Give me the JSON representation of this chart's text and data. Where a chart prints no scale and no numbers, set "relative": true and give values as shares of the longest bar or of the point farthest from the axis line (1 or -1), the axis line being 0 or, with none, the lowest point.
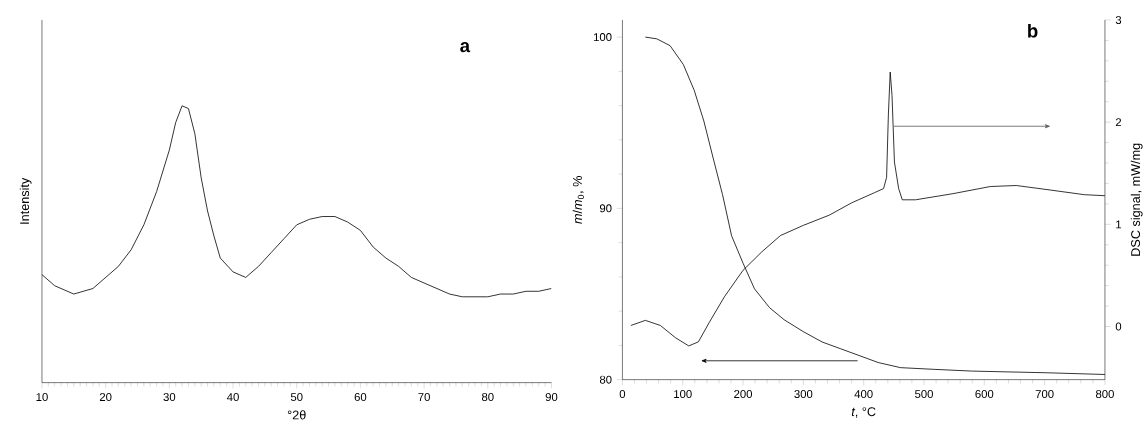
{
  "chart_data": [
    {
      "type": "line",
      "title": "a",
      "xlabel": "°2θ",
      "ylabel": "Intensity",
      "relative": true,
      "color": "#000000",
      "xlim": [
        10,
        90
      ],
      "xticks": [
        10,
        20,
        30,
        40,
        50,
        60,
        70,
        80,
        90
      ],
      "x": [
        10,
        12,
        15,
        18,
        20,
        22,
        24,
        26,
        28,
        30,
        31,
        32,
        33,
        34,
        35,
        36,
        37,
        38,
        40,
        42,
        44,
        46,
        48,
        50,
        52,
        54,
        56,
        58,
        60,
        62,
        64,
        66,
        68,
        70,
        72,
        74,
        76,
        78,
        80,
        82,
        84,
        86,
        88,
        90
      ],
      "values": [
        0.39,
        0.35,
        0.32,
        0.34,
        0.38,
        0.42,
        0.48,
        0.57,
        0.69,
        0.84,
        0.94,
        1.0,
        0.99,
        0.9,
        0.74,
        0.62,
        0.53,
        0.45,
        0.4,
        0.38,
        0.42,
        0.47,
        0.52,
        0.57,
        0.59,
        0.6,
        0.6,
        0.58,
        0.55,
        0.49,
        0.45,
        0.42,
        0.38,
        0.36,
        0.34,
        0.32,
        0.31,
        0.31,
        0.31,
        0.32,
        0.32,
        0.33,
        0.33,
        0.34
      ]
    },
    {
      "type": "line",
      "title": "b",
      "xlabel": "*t*, °C",
      "ylabel": "*m*/*m*$_{0}$, %",
      "y2label": "DSC signal, mW/mg",
      "xlim": [
        0,
        800
      ],
      "xticks": [
        0,
        100,
        200,
        300,
        400,
        500,
        600,
        700,
        800
      ],
      "ylim": [
        80,
        101
      ],
      "yticks": [
        80,
        90,
        100
      ],
      "y2lim": [
        -0.52,
        3
      ],
      "y2ticks": [
        0,
        1,
        2,
        3
      ],
      "series": [
        {
          "color": "#000000",
          "x": [
            38,
            57,
            79,
            101,
            119,
            135,
            150,
            166,
            181,
            200,
            219,
            244,
            268,
            300,
            331,
            362,
            393,
            424,
            461,
            517,
            579,
            641,
            704,
            800
          ],
          "values": [
            100,
            99.9,
            99.5,
            98.4,
            96.9,
            95.1,
            93.0,
            90.8,
            88.4,
            86.8,
            85.3,
            84.2,
            83.5,
            82.8,
            82.2,
            81.8,
            81.4,
            81.0,
            80.7,
            80.6,
            80.5,
            80.45,
            80.4,
            80.3
          ]
        },
        {
          "color": "#000000",
          "axis": "y2",
          "x": [
            14,
            38,
            63,
            88,
            110,
            126,
            144,
            169,
            200,
            231,
            262,
            300,
            343,
            380,
            418,
            433,
            438,
            441,
            444,
            447,
            451,
            458,
            464,
            486,
            548,
            610,
            653,
            704,
            766,
            800
          ],
          "values": [
            0.01,
            0.06,
            0.01,
            -0.11,
            -0.19,
            -0.15,
            0.04,
            0.29,
            0.55,
            0.73,
            0.89,
            0.99,
            1.09,
            1.21,
            1.31,
            1.35,
            1.46,
            2.08,
            2.49,
            2.26,
            1.61,
            1.35,
            1.24,
            1.24,
            1.3,
            1.37,
            1.38,
            1.34,
            1.29,
            1.28
          ]
        }
      ]
    }
  ]
}
